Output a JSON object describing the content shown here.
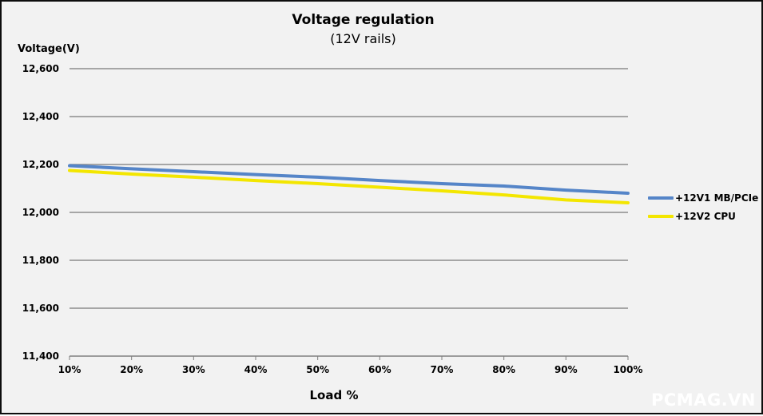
{
  "chart_data": {
    "type": "line",
    "title": "Voltage regulation",
    "subtitle": "(12V rails)",
    "xlabel": "Load %",
    "ylabel": "Voltage(V)",
    "x_tick_labels": [
      "10%",
      "20%",
      "30%",
      "40%",
      "50%",
      "60%",
      "70%",
      "80%",
      "90%",
      "100%"
    ],
    "x_values": [
      10,
      20,
      30,
      40,
      50,
      60,
      70,
      80,
      90,
      100
    ],
    "y_ticks": [
      {
        "value": 12600,
        "label": "12,600"
      },
      {
        "value": 12400,
        "label": "12,400"
      },
      {
        "value": 12200,
        "label": "12,200"
      },
      {
        "value": 12000,
        "label": "12,000"
      },
      {
        "value": 11800,
        "label": "11,800"
      },
      {
        "value": 11600,
        "label": "11,600"
      },
      {
        "value": 11400,
        "label": "11,400"
      }
    ],
    "ylim": [
      11400,
      12600
    ],
    "grid": "horizontal",
    "legend_position": "right",
    "series": [
      {
        "name": "+12V1 MB/PCIe",
        "color": "#5585c8",
        "values": [
          12195,
          12182,
          12170,
          12158,
          12147,
          12133,
          12120,
          12110,
          12093,
          12080
        ]
      },
      {
        "name": "+12V2 CPU",
        "color": "#f3e600",
        "values": [
          12175,
          12160,
          12147,
          12133,
          12120,
          12105,
          12090,
          12073,
          12052,
          12040
        ]
      }
    ]
  },
  "colors": {
    "background": "#f2f2f2",
    "border": "#0d0d0d",
    "gridline": "#8d8d8d",
    "axis": "#7f7f7f",
    "text": "#000000"
  },
  "watermark": {
    "text": "PCMAG.VN",
    "color": "#ffffff"
  }
}
